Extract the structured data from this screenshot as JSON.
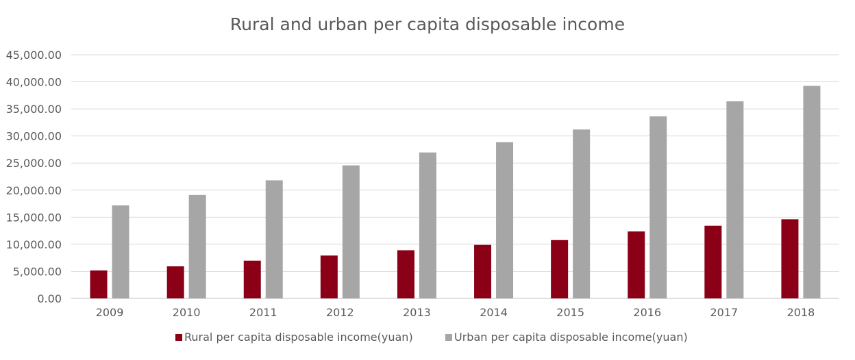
{
  "chart_data": {
    "type": "bar",
    "title": "Rural and urban per capita disposable income",
    "xlabel": "",
    "ylabel": "",
    "categories": [
      "2009",
      "2010",
      "2011",
      "2012",
      "2013",
      "2014",
      "2015",
      "2016",
      "2017",
      "2018"
    ],
    "series": [
      {
        "name": "Rural per capita disposable income(yuan)",
        "color": "#8b0016",
        "values": [
          5153,
          5919,
          6977,
          7917,
          8896,
          9892,
          10772,
          12363,
          13432,
          14617
        ]
      },
      {
        "name": "Urban per capita disposable income(yuan)",
        "color": "#a6a6a6",
        "values": [
          17175,
          19109,
          21810,
          24565,
          26955,
          28844,
          31195,
          33616,
          36396,
          39251
        ]
      }
    ],
    "ylim": [
      0,
      45000
    ],
    "y_ticks": [
      "0.00",
      "5,000.00",
      "10,000.00",
      "15,000.00",
      "20,000.00",
      "25,000.00",
      "30,000.00",
      "35,000.00",
      "40,000.00",
      "45,000.00"
    ],
    "grid": true,
    "legend_position": "bottom"
  }
}
